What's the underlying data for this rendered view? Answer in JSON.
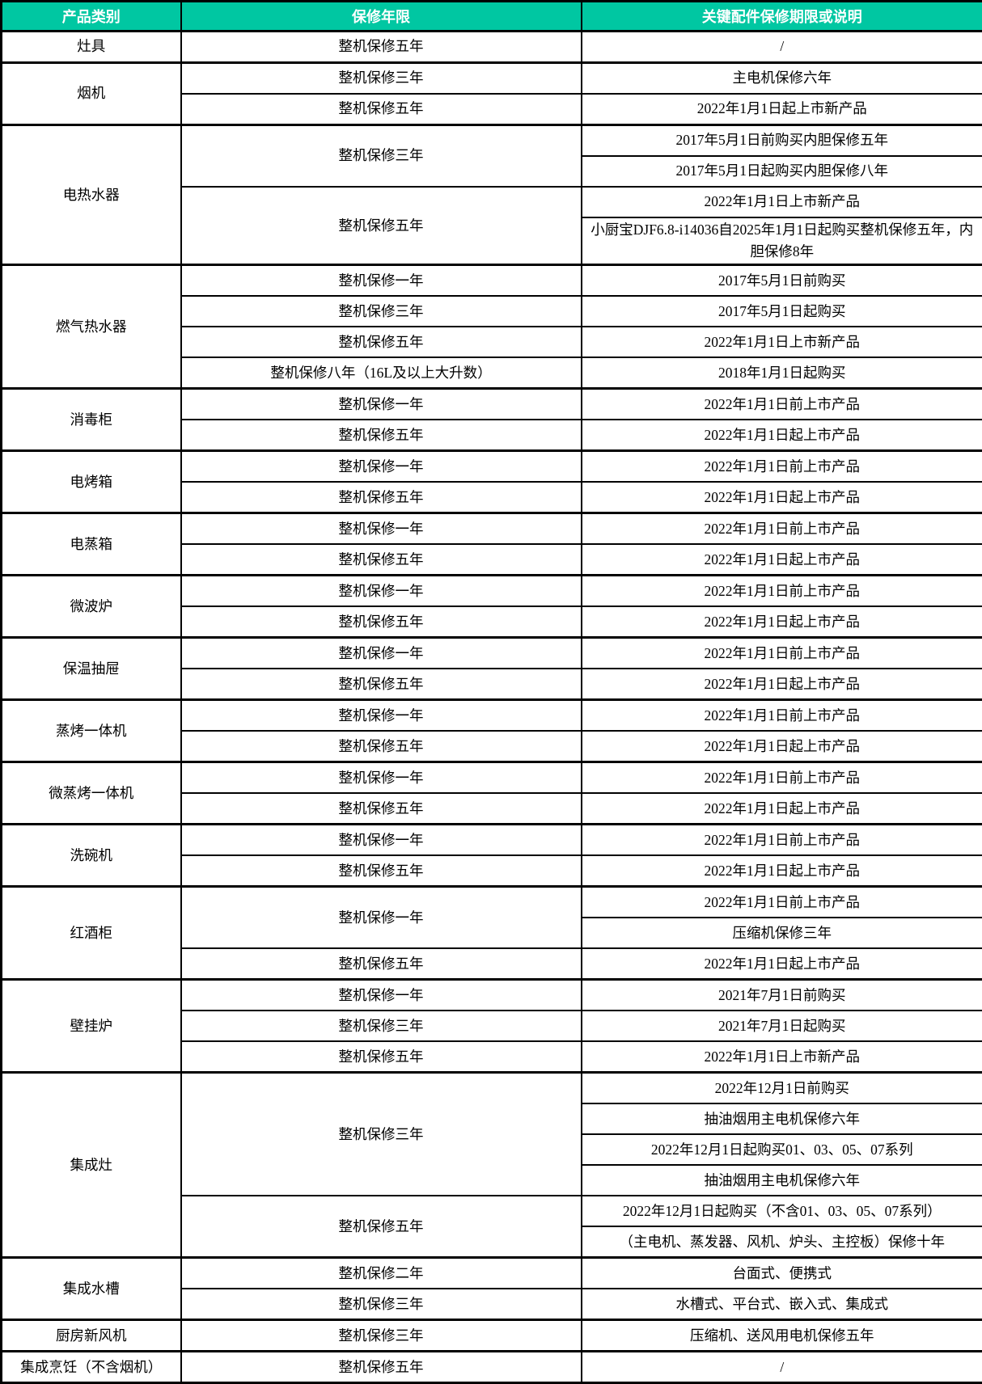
{
  "table": {
    "colors": {
      "header_bg": "#00C7A2",
      "header_text": "#FFFFFF",
      "border": "#000000",
      "body_text": "#000000"
    },
    "header": [
      "产品类别",
      "保修年限",
      "关键配件保修期限或说明"
    ],
    "categories": [
      {
        "name": "灶具",
        "warranties": [
          {
            "period": "整机保修五年",
            "notes": [
              "/"
            ]
          }
        ]
      },
      {
        "name": "烟机",
        "warranties": [
          {
            "period": "整机保修三年",
            "notes": [
              "主电机保修六年"
            ]
          },
          {
            "period": "整机保修五年",
            "notes": [
              "2022年1月1日起上市新产品"
            ]
          }
        ]
      },
      {
        "name": "电热水器",
        "warranties": [
          {
            "period": "整机保修三年",
            "notes": [
              "2017年5月1日前购买内胆保修五年",
              "2017年5月1日起购买内胆保修八年"
            ]
          },
          {
            "period": "整机保修五年",
            "notes": [
              "2022年1月1日上市新产品",
              "小厨宝DJF6.8-i14036自2025年1月1日起购买整机保修五年，内胆保修8年"
            ]
          }
        ]
      },
      {
        "name": "燃气热水器",
        "warranties": [
          {
            "period": "整机保修一年",
            "notes": [
              "2017年5月1日前购买"
            ]
          },
          {
            "period": "整机保修三年",
            "notes": [
              "2017年5月1日起购买"
            ]
          },
          {
            "period": "整机保修五年",
            "notes": [
              "2022年1月1日上市新产品"
            ]
          },
          {
            "period": "整机保修八年（16L及以上大升数）",
            "notes": [
              "2018年1月1日起购买"
            ]
          }
        ]
      },
      {
        "name": "消毒柜",
        "warranties": [
          {
            "period": "整机保修一年",
            "notes": [
              "2022年1月1日前上市产品"
            ]
          },
          {
            "period": "整机保修五年",
            "notes": [
              "2022年1月1日起上市产品"
            ]
          }
        ]
      },
      {
        "name": "电烤箱",
        "warranties": [
          {
            "period": "整机保修一年",
            "notes": [
              "2022年1月1日前上市产品"
            ]
          },
          {
            "period": "整机保修五年",
            "notes": [
              "2022年1月1日起上市产品"
            ]
          }
        ]
      },
      {
        "name": "电蒸箱",
        "warranties": [
          {
            "period": "整机保修一年",
            "notes": [
              "2022年1月1日前上市产品"
            ]
          },
          {
            "period": "整机保修五年",
            "notes": [
              "2022年1月1日起上市产品"
            ]
          }
        ]
      },
      {
        "name": "微波炉",
        "warranties": [
          {
            "period": "整机保修一年",
            "notes": [
              "2022年1月1日前上市产品"
            ]
          },
          {
            "period": "整机保修五年",
            "notes": [
              "2022年1月1日起上市产品"
            ]
          }
        ]
      },
      {
        "name": "保温抽屉",
        "warranties": [
          {
            "period": "整机保修一年",
            "notes": [
              "2022年1月1日前上市产品"
            ]
          },
          {
            "period": "整机保修五年",
            "notes": [
              "2022年1月1日起上市产品"
            ]
          }
        ]
      },
      {
        "name": "蒸烤一体机",
        "warranties": [
          {
            "period": "整机保修一年",
            "notes": [
              "2022年1月1日前上市产品"
            ]
          },
          {
            "period": "整机保修五年",
            "notes": [
              "2022年1月1日起上市产品"
            ]
          }
        ]
      },
      {
        "name": "微蒸烤一体机",
        "warranties": [
          {
            "period": "整机保修一年",
            "notes": [
              "2022年1月1日前上市产品"
            ]
          },
          {
            "period": "整机保修五年",
            "notes": [
              "2022年1月1日起上市产品"
            ]
          }
        ]
      },
      {
        "name": "洗碗机",
        "warranties": [
          {
            "period": "整机保修一年",
            "notes": [
              "2022年1月1日前上市产品"
            ]
          },
          {
            "period": "整机保修五年",
            "notes": [
              "2022年1月1日起上市产品"
            ]
          }
        ]
      },
      {
        "name": "红酒柜",
        "warranties": [
          {
            "period": "整机保修一年",
            "notes": [
              "2022年1月1日前上市产品",
              "压缩机保修三年"
            ]
          },
          {
            "period": "整机保修五年",
            "notes": [
              "2022年1月1日起上市产品"
            ]
          }
        ]
      },
      {
        "name": "壁挂炉",
        "warranties": [
          {
            "period": "整机保修一年",
            "notes": [
              "2021年7月1日前购买"
            ]
          },
          {
            "period": "整机保修三年",
            "notes": [
              "2021年7月1日起购买"
            ]
          },
          {
            "period": "整机保修五年",
            "notes": [
              "2022年1月1日上市新产品"
            ]
          }
        ]
      },
      {
        "name": "集成灶",
        "warranties": [
          {
            "period": "整机保修三年",
            "notes": [
              "2022年12月1日前购买",
              "抽油烟用主电机保修六年",
              "2022年12月1日起购买01、03、05、07系列",
              "抽油烟用主电机保修六年"
            ]
          },
          {
            "period": "整机保修五年",
            "notes": [
              "2022年12月1日起购买（不含01、03、05、07系列）",
              "（主电机、蒸发器、风机、炉头、主控板）保修十年"
            ]
          }
        ]
      },
      {
        "name": "集成水槽",
        "warranties": [
          {
            "period": "整机保修二年",
            "notes": [
              "台面式、便携式"
            ]
          },
          {
            "period": "整机保修三年",
            "notes": [
              "水槽式、平台式、嵌入式、集成式"
            ]
          }
        ]
      },
      {
        "name": "厨房新风机",
        "warranties": [
          {
            "period": "整机保修三年",
            "notes": [
              "压缩机、送风用电机保修五年"
            ]
          }
        ]
      },
      {
        "name": "集成烹饪（不含烟机）",
        "warranties": [
          {
            "period": "整机保修五年",
            "notes": [
              "/"
            ]
          }
        ]
      }
    ]
  }
}
